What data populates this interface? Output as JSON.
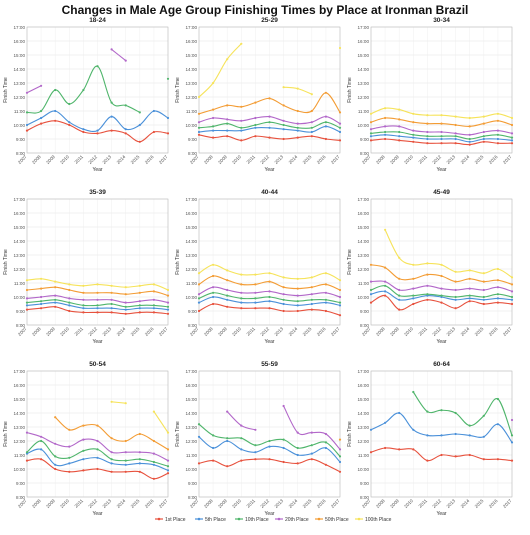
{
  "title": "Changes in Male Age Group Finishing Times by Place at Ironman Brazil",
  "colors": {
    "1st Place": "#e7513d",
    "5th Place": "#4a90d9",
    "10th Place": "#4fb56b",
    "20th Place": "#b267c9",
    "50th Place": "#f39c34",
    "100th Place": "#f6e35a"
  },
  "chart_data": [
    {
      "type": "line",
      "title": "18-24",
      "xlabel": "Year",
      "ylabel": "Finish Time",
      "categories": [
        "2007",
        "2008",
        "2009",
        "2010",
        "2011",
        "2012",
        "2013",
        "2014",
        "2015",
        "2016",
        "2017"
      ],
      "yticks": [
        "8:00",
        "9:00",
        "10:00",
        "11:00",
        "12:00",
        "13:00",
        "14:00",
        "15:00",
        "16:00",
        "17:00"
      ],
      "ylim": [
        8,
        17
      ],
      "series": [
        {
          "name": "1st Place",
          "values": [
            9.6,
            10.1,
            10.3,
            10.0,
            9.5,
            9.4,
            9.6,
            9.4,
            8.8,
            9.5,
            9.4
          ]
        },
        {
          "name": "5th Place",
          "values": [
            10.0,
            10.5,
            11.0,
            10.2,
            9.7,
            9.6,
            10.6,
            9.7,
            10.0,
            11.0,
            10.5
          ]
        },
        {
          "name": "10th Place",
          "values": [
            10.9,
            11.0,
            12.5,
            11.5,
            12.5,
            14.2,
            11.6,
            11.4,
            10.9,
            null,
            13.3
          ]
        },
        {
          "name": "20th Place",
          "values": [
            12.3,
            12.8,
            null,
            null,
            null,
            null,
            15.4,
            14.6,
            null,
            null,
            null
          ]
        }
      ]
    },
    {
      "type": "line",
      "title": "25-29",
      "xlabel": "Year",
      "ylabel": "Finish Time",
      "categories": [
        "2007",
        "2008",
        "2009",
        "2010",
        "2011",
        "2012",
        "2013",
        "2014",
        "2015",
        "2016",
        "2017"
      ],
      "yticks": [
        "8:00",
        "9:00",
        "10:00",
        "11:00",
        "12:00",
        "13:00",
        "14:00",
        "15:00",
        "16:00",
        "17:00"
      ],
      "ylim": [
        8,
        17
      ],
      "series": [
        {
          "name": "1st Place",
          "values": [
            9.3,
            9.1,
            9.2,
            8.9,
            9.2,
            9.1,
            9.0,
            9.1,
            9.2,
            9.0,
            8.9
          ]
        },
        {
          "name": "5th Place",
          "values": [
            9.5,
            9.6,
            9.6,
            9.6,
            9.8,
            9.8,
            9.7,
            9.6,
            9.5,
            9.9,
            9.5
          ]
        },
        {
          "name": "10th Place",
          "values": [
            9.8,
            9.9,
            10.1,
            9.8,
            10.0,
            10.2,
            10.0,
            9.8,
            9.8,
            10.2,
            9.8
          ]
        },
        {
          "name": "20th Place",
          "values": [
            10.2,
            10.5,
            10.4,
            10.3,
            10.5,
            10.6,
            10.3,
            10.1,
            10.2,
            10.6,
            10.1
          ]
        },
        {
          "name": "50th Place",
          "values": [
            10.8,
            11.1,
            11.4,
            11.3,
            11.6,
            11.9,
            11.4,
            11.0,
            11.0,
            12.3,
            10.9
          ]
        },
        {
          "name": "100th Place",
          "values": [
            12.0,
            13.0,
            14.7,
            15.8,
            null,
            null,
            12.7,
            12.6,
            12.2,
            null,
            15.5
          ]
        }
      ]
    },
    {
      "type": "line",
      "title": "30-34",
      "xlabel": "Year",
      "ylabel": "Finish Time",
      "categories": [
        "2007",
        "2008",
        "2009",
        "2010",
        "2011",
        "2012",
        "2013",
        "2014",
        "2015",
        "2016",
        "2017"
      ],
      "yticks": [
        "8:00",
        "9:00",
        "10:00",
        "11:00",
        "12:00",
        "13:00",
        "14:00",
        "15:00",
        "16:00",
        "17:00"
      ],
      "ylim": [
        8,
        17
      ],
      "series": [
        {
          "name": "1st Place",
          "values": [
            8.9,
            9.0,
            8.9,
            8.8,
            8.7,
            8.7,
            8.7,
            8.6,
            8.8,
            8.7,
            8.7
          ]
        },
        {
          "name": "5th Place",
          "values": [
            9.2,
            9.3,
            9.2,
            9.1,
            9.0,
            9.0,
            9.0,
            8.8,
            9.0,
            9.0,
            8.9
          ]
        },
        {
          "name": "10th Place",
          "values": [
            9.4,
            9.5,
            9.5,
            9.3,
            9.2,
            9.2,
            9.2,
            9.0,
            9.2,
            9.3,
            9.1
          ]
        },
        {
          "name": "20th Place",
          "values": [
            9.7,
            9.9,
            9.9,
            9.6,
            9.5,
            9.5,
            9.4,
            9.3,
            9.5,
            9.6,
            9.4
          ]
        },
        {
          "name": "50th Place",
          "values": [
            10.2,
            10.5,
            10.4,
            10.2,
            10.1,
            10.1,
            10.0,
            9.9,
            10.1,
            10.3,
            10.0
          ]
        },
        {
          "name": "100th Place",
          "values": [
            10.8,
            11.2,
            11.1,
            10.8,
            10.7,
            10.7,
            10.6,
            10.5,
            10.6,
            10.8,
            10.5
          ]
        }
      ]
    },
    {
      "type": "line",
      "title": "35-39",
      "xlabel": "Year",
      "ylabel": "Finish Time",
      "categories": [
        "2007",
        "2008",
        "2009",
        "2010",
        "2011",
        "2012",
        "2013",
        "2014",
        "2015",
        "2016",
        "2017"
      ],
      "yticks": [
        "8:00",
        "9:00",
        "10:00",
        "11:00",
        "12:00",
        "13:00",
        "14:00",
        "15:00",
        "16:00",
        "17:00"
      ],
      "ylim": [
        8,
        17
      ],
      "series": [
        {
          "name": "1st Place",
          "values": [
            9.1,
            9.2,
            9.3,
            9.0,
            8.9,
            8.9,
            8.9,
            8.8,
            8.9,
            8.9,
            8.8
          ]
        },
        {
          "name": "5th Place",
          "values": [
            9.4,
            9.5,
            9.6,
            9.4,
            9.2,
            9.2,
            9.2,
            9.1,
            9.2,
            9.2,
            9.1
          ]
        },
        {
          "name": "10th Place",
          "values": [
            9.6,
            9.7,
            9.8,
            9.6,
            9.4,
            9.4,
            9.5,
            9.3,
            9.4,
            9.4,
            9.3
          ]
        },
        {
          "name": "20th Place",
          "values": [
            9.9,
            10.0,
            10.1,
            9.9,
            9.8,
            9.8,
            9.8,
            9.6,
            9.7,
            9.8,
            9.6
          ]
        },
        {
          "name": "50th Place",
          "values": [
            10.5,
            10.6,
            10.7,
            10.5,
            10.3,
            10.3,
            10.3,
            10.2,
            10.3,
            10.4,
            10.1
          ]
        },
        {
          "name": "100th Place",
          "values": [
            11.2,
            11.3,
            11.1,
            10.9,
            10.8,
            10.9,
            10.8,
            10.7,
            10.8,
            10.9,
            10.5
          ]
        }
      ]
    },
    {
      "type": "line",
      "title": "40-44",
      "xlabel": "Year",
      "ylabel": "Finish Time",
      "categories": [
        "2007",
        "2008",
        "2009",
        "2010",
        "2011",
        "2012",
        "2013",
        "2014",
        "2015",
        "2016",
        "2017"
      ],
      "yticks": [
        "8:00",
        "9:00",
        "10:00",
        "11:00",
        "12:00",
        "13:00",
        "14:00",
        "15:00",
        "16:00",
        "17:00"
      ],
      "ylim": [
        8,
        17
      ],
      "series": [
        {
          "name": "1st Place",
          "values": [
            9.0,
            9.5,
            9.3,
            9.2,
            9.2,
            9.2,
            9.0,
            9.0,
            9.1,
            9.0,
            8.7
          ]
        },
        {
          "name": "5th Place",
          "values": [
            9.6,
            10.0,
            9.8,
            9.6,
            9.6,
            9.7,
            9.5,
            9.4,
            9.5,
            9.6,
            9.4
          ]
        },
        {
          "name": "10th Place",
          "values": [
            9.9,
            10.3,
            10.1,
            9.9,
            9.9,
            10.0,
            9.8,
            9.7,
            9.8,
            9.8,
            9.6
          ]
        },
        {
          "name": "20th Place",
          "values": [
            10.2,
            10.7,
            10.5,
            10.3,
            10.3,
            10.4,
            10.2,
            10.1,
            10.2,
            10.3,
            10.0
          ]
        },
        {
          "name": "50th Place",
          "values": [
            10.9,
            11.5,
            11.2,
            10.9,
            10.9,
            11.1,
            10.7,
            10.6,
            10.7,
            10.9,
            10.5
          ]
        },
        {
          "name": "100th Place",
          "values": [
            11.7,
            12.3,
            11.9,
            11.6,
            11.6,
            11.7,
            11.4,
            11.3,
            11.4,
            11.7,
            11.2
          ]
        }
      ]
    },
    {
      "type": "line",
      "title": "45-49",
      "xlabel": "Year",
      "ylabel": "Finish Time",
      "categories": [
        "2007",
        "2008",
        "2009",
        "2010",
        "2011",
        "2012",
        "2013",
        "2014",
        "2015",
        "2016",
        "2017"
      ],
      "yticks": [
        "8:00",
        "9:00",
        "10:00",
        "11:00",
        "12:00",
        "13:00",
        "14:00",
        "15:00",
        "16:00",
        "17:00"
      ],
      "ylim": [
        8,
        17
      ],
      "series": [
        {
          "name": "1st Place",
          "values": [
            9.6,
            10.1,
            9.1,
            9.5,
            9.8,
            9.6,
            9.2,
            9.7,
            9.5,
            9.6,
            9.5
          ]
        },
        {
          "name": "5th Place",
          "values": [
            10.2,
            10.4,
            9.8,
            9.9,
            10.1,
            10.0,
            9.8,
            9.9,
            9.8,
            9.9,
            9.8
          ]
        },
        {
          "name": "10th Place",
          "values": [
            10.5,
            10.8,
            10.1,
            10.1,
            10.2,
            10.1,
            10.0,
            10.1,
            10.0,
            10.2,
            10.0
          ]
        },
        {
          "name": "20th Place",
          "values": [
            11.1,
            11.1,
            10.5,
            10.6,
            10.8,
            10.6,
            10.5,
            10.6,
            10.5,
            10.7,
            10.4
          ]
        },
        {
          "name": "50th Place",
          "values": [
            12.3,
            12.1,
            11.3,
            11.3,
            11.6,
            11.5,
            11.1,
            11.3,
            11.1,
            11.2,
            10.9
          ]
        },
        {
          "name": "100th Place",
          "values": [
            null,
            14.8,
            12.8,
            12.3,
            12.4,
            12.3,
            11.8,
            11.9,
            11.7,
            12.0,
            11.4
          ]
        }
      ]
    },
    {
      "type": "line",
      "title": "50-54",
      "xlabel": "Year",
      "ylabel": "Finish Time",
      "categories": [
        "2007",
        "2008",
        "2009",
        "2010",
        "2011",
        "2012",
        "2013",
        "2014",
        "2015",
        "2016",
        "2017"
      ],
      "yticks": [
        "8:00",
        "9:00",
        "10:00",
        "11:00",
        "12:00",
        "13:00",
        "14:00",
        "15:00",
        "16:00",
        "17:00"
      ],
      "ylim": [
        8,
        17
      ],
      "series": [
        {
          "name": "1st Place",
          "values": [
            10.6,
            10.7,
            10.0,
            9.8,
            9.9,
            10.0,
            9.8,
            9.8,
            9.8,
            9.3,
            9.7
          ]
        },
        {
          "name": "5th Place",
          "values": [
            11.1,
            11.4,
            10.3,
            10.4,
            10.7,
            10.8,
            10.4,
            10.3,
            10.4,
            10.3,
            9.9
          ]
        },
        {
          "name": "10th Place",
          "values": [
            11.2,
            12.0,
            10.9,
            10.8,
            11.3,
            11.4,
            10.7,
            10.6,
            10.7,
            10.5,
            10.2
          ]
        },
        {
          "name": "20th Place",
          "values": [
            12.6,
            12.3,
            11.8,
            11.6,
            12.1,
            12.0,
            11.2,
            11.2,
            11.2,
            11.1,
            10.6
          ]
        },
        {
          "name": "50th Place",
          "values": [
            null,
            null,
            13.7,
            12.8,
            13.1,
            13.1,
            12.2,
            12.0,
            12.5,
            12.0,
            11.4
          ]
        },
        {
          "name": "100th Place",
          "values": [
            null,
            null,
            null,
            null,
            null,
            null,
            14.8,
            14.7,
            null,
            14.1,
            12.6
          ]
        }
      ]
    },
    {
      "type": "line",
      "title": "55-59",
      "xlabel": "Year",
      "ylabel": "Finish Time",
      "categories": [
        "2007",
        "2008",
        "2009",
        "2010",
        "2011",
        "2012",
        "2013",
        "2014",
        "2015",
        "2016",
        "2017"
      ],
      "yticks": [
        "8:00",
        "9:00",
        "10:00",
        "11:00",
        "12:00",
        "13:00",
        "14:00",
        "15:00",
        "16:00",
        "17:00"
      ],
      "ylim": [
        8,
        17
      ],
      "series": [
        {
          "name": "1st Place",
          "values": [
            10.4,
            10.6,
            10.2,
            10.6,
            10.7,
            10.7,
            10.5,
            10.4,
            10.7,
            10.3,
            9.8
          ]
        },
        {
          "name": "5th Place",
          "values": [
            12.3,
            11.5,
            12.0,
            11.4,
            11.2,
            11.6,
            11.5,
            11.0,
            11.1,
            11.5,
            10.5
          ]
        },
        {
          "name": "10th Place",
          "values": [
            13.2,
            12.4,
            12.2,
            12.2,
            11.7,
            12.0,
            12.1,
            11.5,
            11.7,
            11.9,
            10.9
          ]
        },
        {
          "name": "20th Place",
          "values": [
            null,
            null,
            14.1,
            13.1,
            12.8,
            null,
            14.5,
            12.6,
            12.6,
            12.5,
            11.4
          ]
        },
        {
          "name": "50th Place",
          "values": [
            null,
            null,
            null,
            null,
            null,
            null,
            null,
            null,
            null,
            null,
            12.1
          ]
        }
      ]
    },
    {
      "type": "line",
      "title": "60-64",
      "xlabel": "Year",
      "ylabel": "Finish Time",
      "categories": [
        "2007",
        "2008",
        "2009",
        "2010",
        "2011",
        "2012",
        "2013",
        "2014",
        "2015",
        "2016",
        "2017"
      ],
      "yticks": [
        "8:00",
        "9:00",
        "10:00",
        "11:00",
        "12:00",
        "13:00",
        "14:00",
        "15:00",
        "16:00",
        "17:00"
      ],
      "ylim": [
        8,
        17
      ],
      "series": [
        {
          "name": "1st Place",
          "values": [
            11.2,
            11.5,
            11.4,
            11.4,
            10.6,
            11.0,
            10.9,
            11.0,
            10.7,
            10.7,
            10.6
          ]
        },
        {
          "name": "5th Place",
          "values": [
            12.8,
            13.3,
            14.0,
            12.8,
            12.4,
            12.4,
            12.5,
            12.4,
            12.3,
            13.2,
            11.9
          ]
        },
        {
          "name": "10th Place",
          "values": [
            null,
            null,
            null,
            15.5,
            14.1,
            14.2,
            14.0,
            13.1,
            13.8,
            15.0,
            12.4
          ]
        },
        {
          "name": "20th Place",
          "values": [
            null,
            null,
            null,
            null,
            null,
            null,
            null,
            null,
            null,
            null,
            13.5
          ]
        }
      ]
    }
  ]
}
